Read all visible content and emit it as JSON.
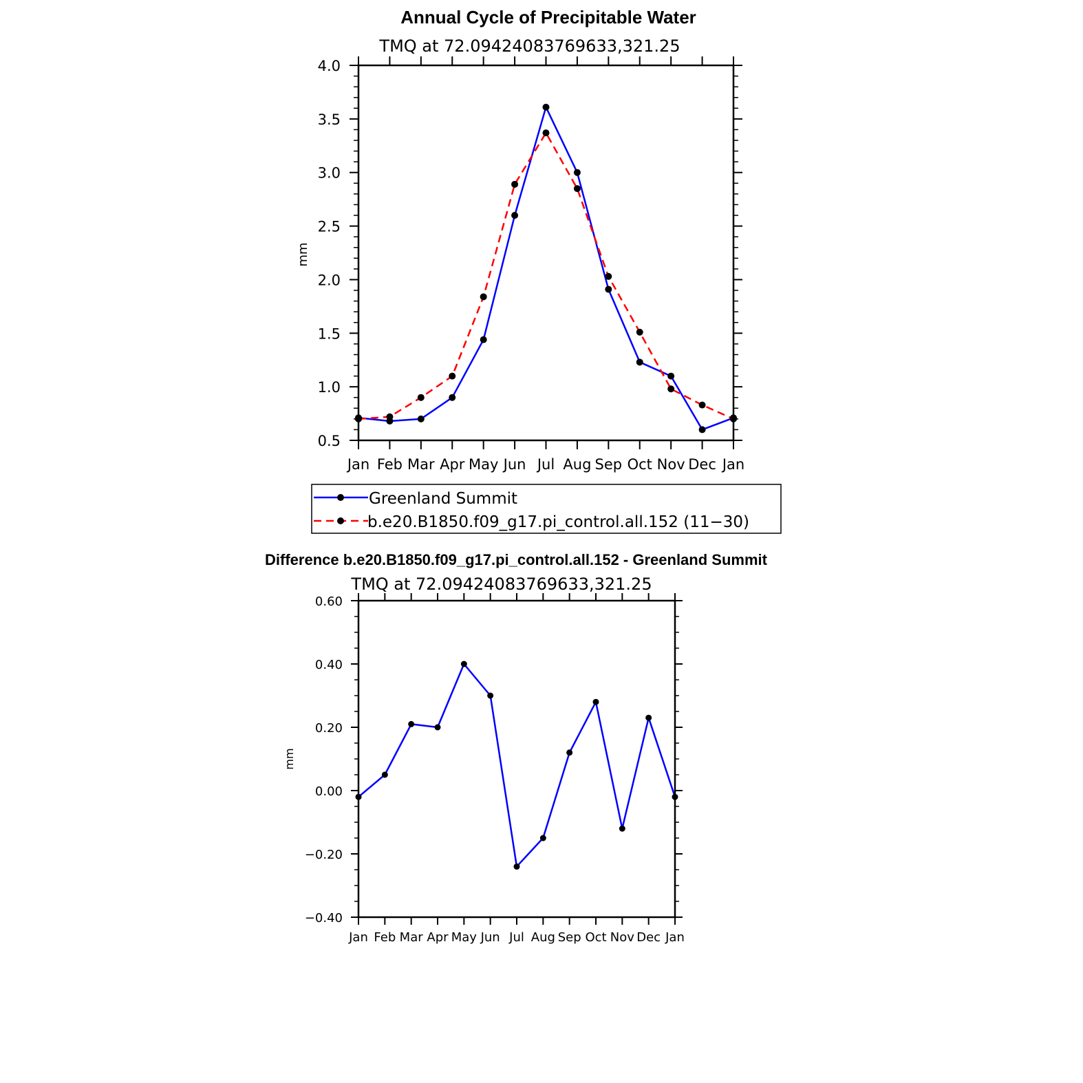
{
  "chart_data": [
    {
      "type": "line",
      "title": "Annual Cycle of Precipitable Water",
      "subtitle": "TMQ at 72.09424083769633,321.25",
      "xlabel": "",
      "ylabel": "mm",
      "categories": [
        "Jan",
        "Feb",
        "Mar",
        "Apr",
        "May",
        "Jun",
        "Jul",
        "Aug",
        "Sep",
        "Oct",
        "Nov",
        "Dec",
        "Jan"
      ],
      "ylim": [
        0.5,
        4.0
      ],
      "yticks": [
        "0.5",
        "1.0",
        "1.5",
        "2.0",
        "2.5",
        "3.0",
        "3.5",
        "4.0"
      ],
      "grid": false,
      "legend_position": "bottom",
      "series": [
        {
          "name": "Greenland Summit",
          "color": "#0000ff",
          "dash": "solid",
          "values": [
            0.71,
            0.68,
            0.7,
            0.9,
            1.44,
            2.6,
            3.61,
            3.0,
            1.91,
            1.23,
            1.1,
            0.6,
            0.71
          ]
        },
        {
          "name": "b.e20.B1850.f09_g17.pi_control.all.152 (11−30)",
          "color": "#ff0000",
          "dash": "dashed",
          "values": [
            0.7,
            0.72,
            0.9,
            1.1,
            1.84,
            2.89,
            3.37,
            2.85,
            2.03,
            1.51,
            0.98,
            0.83,
            0.7
          ]
        }
      ]
    },
    {
      "type": "line",
      "title": "Difference b.e20.B1850.f09_g17.pi_control.all.152 - Greenland Summit",
      "subtitle": "TMQ at 72.09424083769633,321.25",
      "xlabel": "",
      "ylabel": "mm",
      "categories": [
        "Jan",
        "Feb",
        "Mar",
        "Apr",
        "May",
        "Jun",
        "Jul",
        "Aug",
        "Sep",
        "Oct",
        "Nov",
        "Dec",
        "Jan"
      ],
      "ylim": [
        -0.4,
        0.6
      ],
      "yticks": [
        "−0.40",
        "−0.20",
        "0.00",
        "0.20",
        "0.40",
        "0.60"
      ],
      "grid": false,
      "series": [
        {
          "name": "Difference",
          "color": "#0000ff",
          "dash": "solid",
          "values": [
            -0.02,
            0.05,
            0.21,
            0.2,
            0.4,
            0.3,
            -0.24,
            -0.15,
            0.12,
            0.28,
            -0.12,
            0.23,
            -0.02
          ]
        }
      ]
    }
  ]
}
